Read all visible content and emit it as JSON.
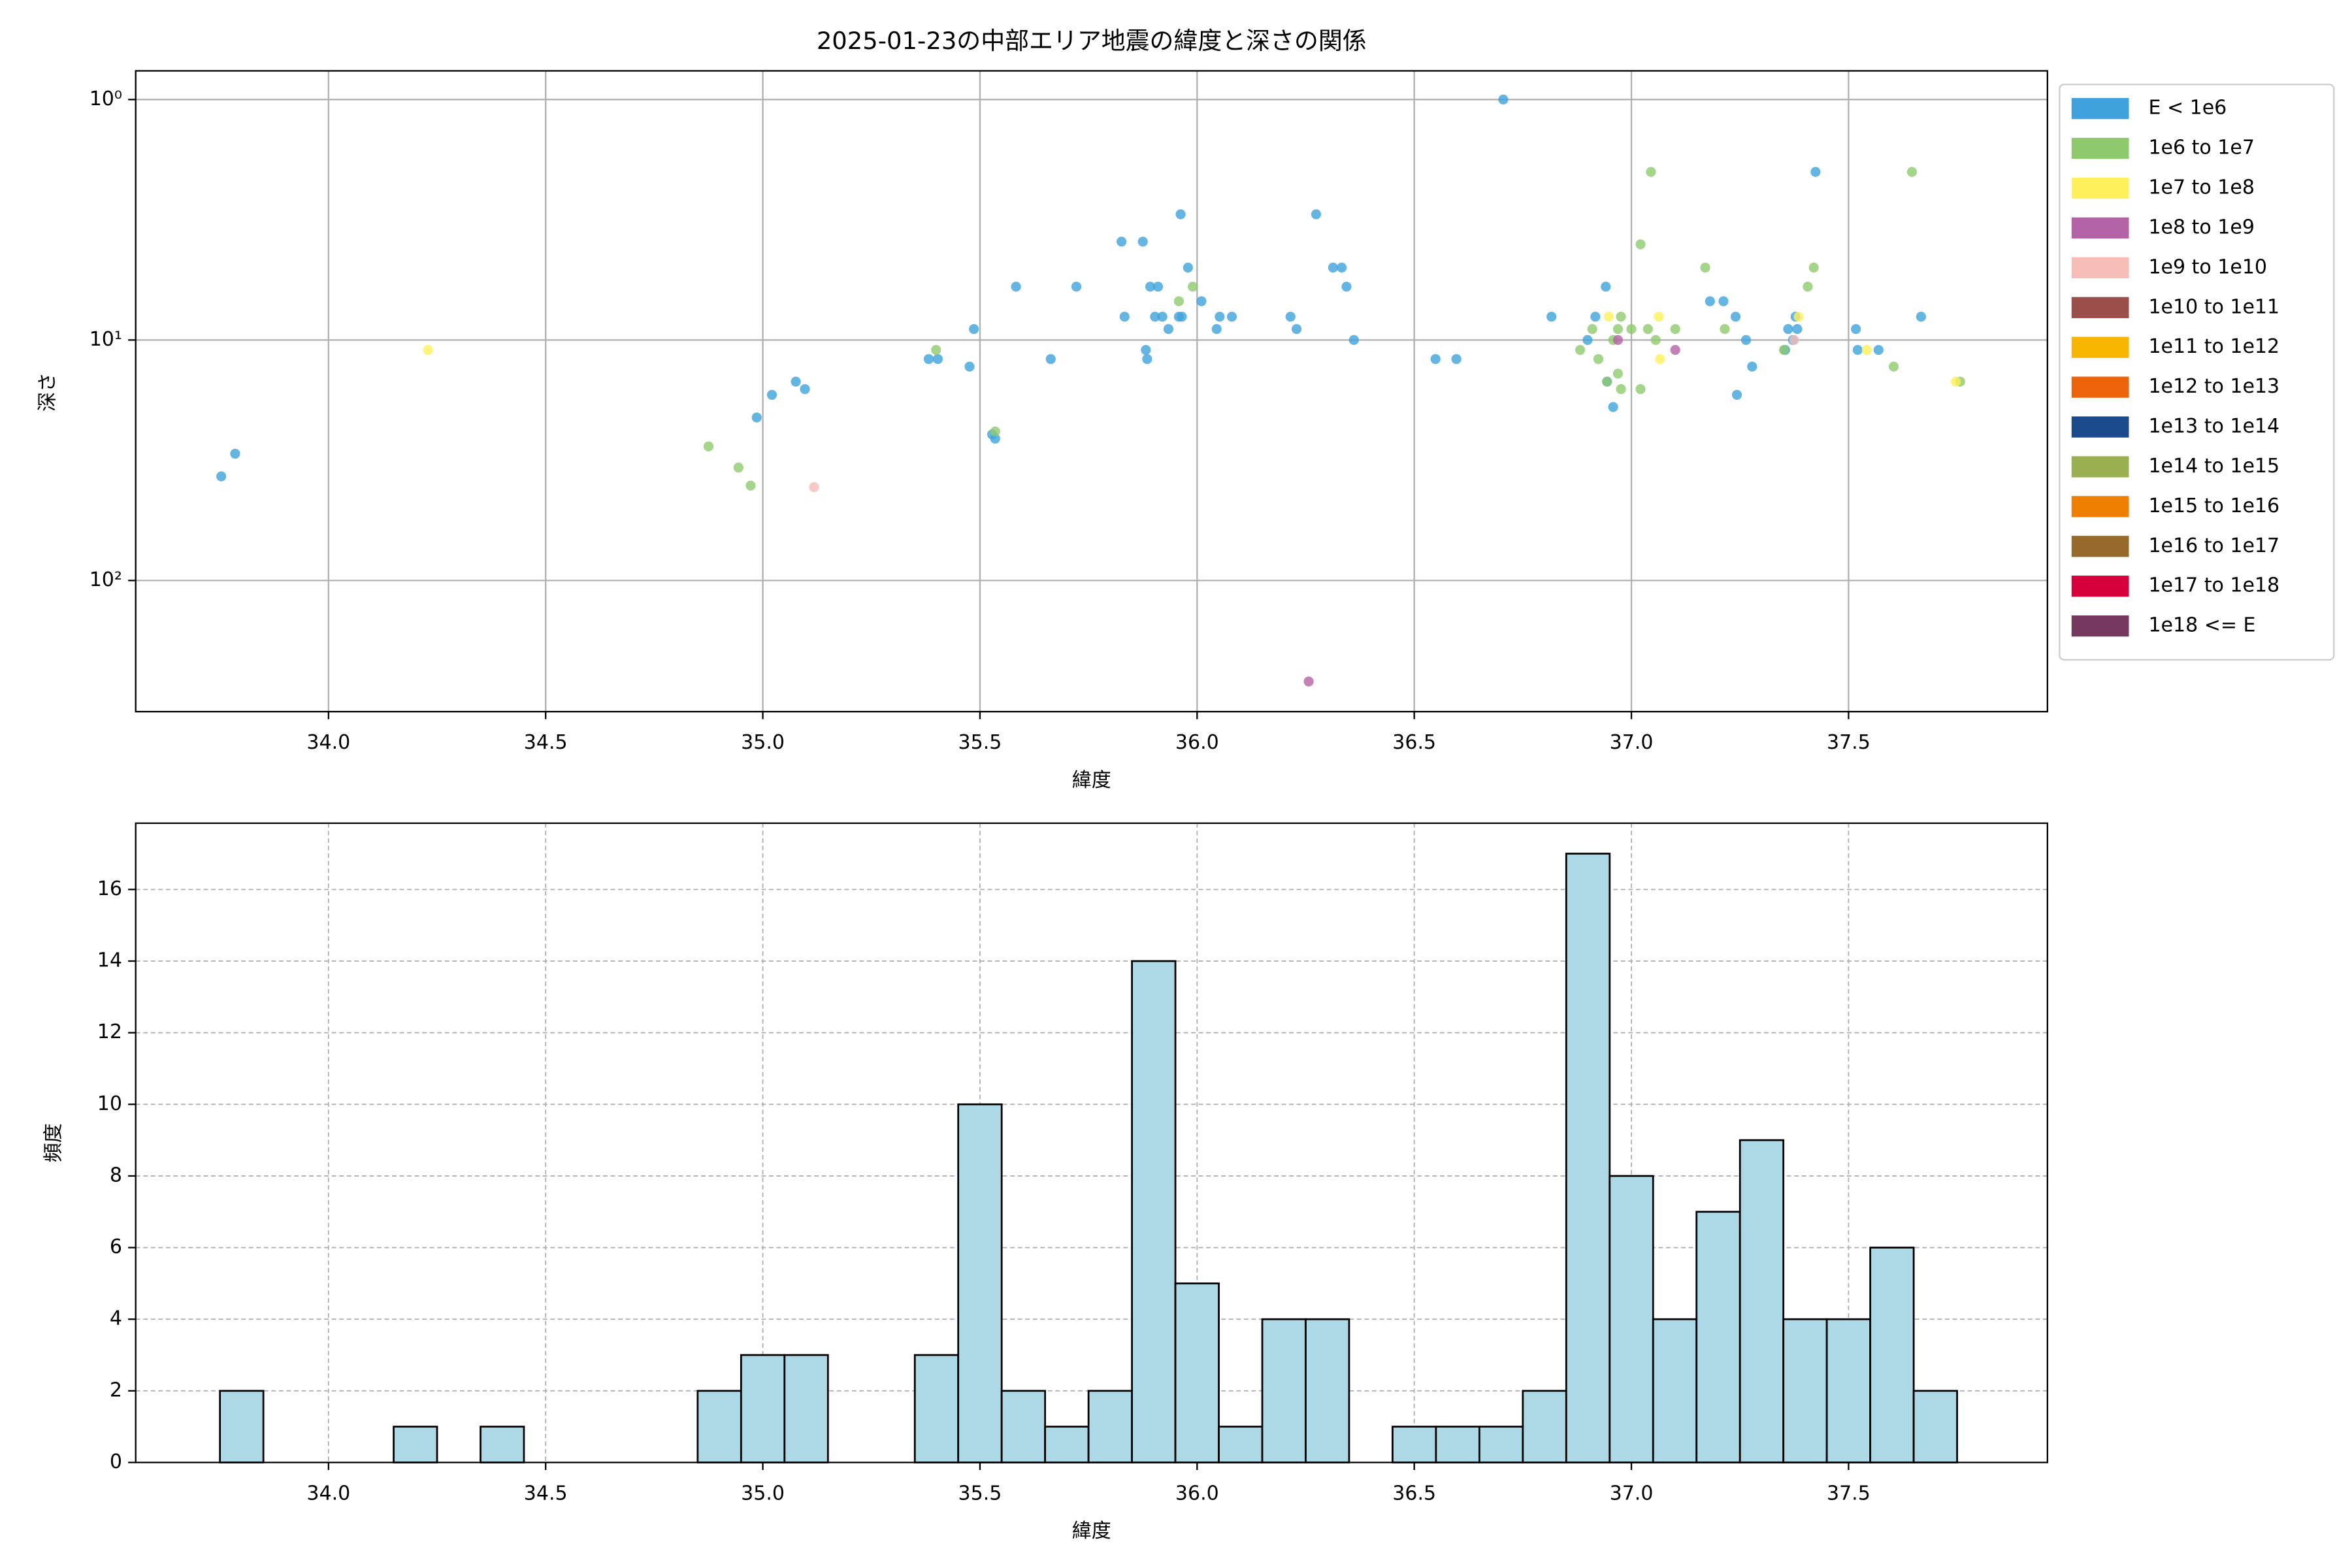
{
  "chart_data": [
    {
      "type": "scatter",
      "title": "2025-01-23の中部エリア地震の緯度と深さの関係",
      "xlabel": "緯度",
      "ylabel": "深さ",
      "yscale": "log",
      "y_inverted": true,
      "grid": true,
      "grid_style": "solid",
      "legend": "outside-right",
      "xlim": [
        33.556,
        37.958
      ],
      "xticks": [
        {
          "value": 34,
          "label": "34.0"
        },
        34.5,
        {
          "value": 35,
          "label": "35.0"
        },
        35.5,
        {
          "value": 36,
          "label": "36.0"
        },
        36.5,
        {
          "value": 37,
          "label": "37.0"
        },
        37.5
      ],
      "ylim": [
        0.76,
        351
      ],
      "yticks": [
        {
          "value": 1,
          "label": "10⁰"
        },
        {
          "value": 10,
          "label": "10¹"
        },
        {
          "value": 100,
          "label": "10²"
        }
      ],
      "series": [
        {
          "name": "E < 1e6",
          "color": "#3fa2dc",
          "x": [
            33.753,
            33.785,
            34.986,
            35.021,
            35.076,
            35.097,
            35.382,
            35.403,
            35.476,
            35.486,
            35.528,
            35.535,
            35.583,
            35.663,
            35.722,
            35.826,
            35.833,
            35.875,
            35.882,
            35.885,
            35.892,
            35.91,
            35.903,
            35.92,
            35.934,
            35.962,
            35.958,
            35.965,
            35.979,
            36.01,
            36.045,
            36.052,
            36.08,
            36.215,
            36.229,
            36.274,
            36.313,
            36.333,
            36.344,
            36.361,
            36.549,
            36.597,
            36.705,
            36.816,
            36.899,
            36.917,
            36.941,
            36.944,
            36.958,
            37.181,
            37.212,
            37.24,
            37.243,
            37.264,
            37.278,
            37.354,
            37.361,
            37.372,
            37.378,
            37.382,
            37.424,
            37.517,
            37.521,
            37.569,
            37.667
          ],
          "values": [
            36.9,
            29.7,
            21.0,
            16.9,
            14.9,
            16.0,
            12.0,
            12.0,
            12.9,
            9.0,
            24.7,
            25.7,
            6.0,
            12.0,
            6.0,
            3.9,
            8.0,
            3.9,
            11.0,
            12.0,
            6.0,
            6.0,
            8.0,
            8.0,
            9.0,
            3.0,
            8.0,
            8.0,
            5.0,
            6.9,
            9.0,
            8.0,
            8.0,
            8.0,
            9.0,
            3.0,
            5.0,
            5.0,
            6.0,
            10.0,
            12.0,
            12.0,
            1.0,
            8.0,
            10.0,
            8.0,
            6.0,
            14.9,
            19.0,
            6.9,
            6.9,
            8.0,
            16.9,
            10.0,
            12.9,
            11.0,
            9.0,
            10.0,
            8.0,
            9.0,
            2.0,
            9.0,
            11.0,
            11.0,
            8.0
          ]
        },
        {
          "name": "1e6 to 1e7",
          "color": "#8ec96e",
          "x": [
            34.875,
            34.944,
            34.972,
            35.399,
            35.535,
            35.958,
            35.99,
            36.882,
            36.91,
            36.924,
            36.944,
            36.958,
            36.969,
            36.976,
            36.969,
            36.976,
            37.0,
            37.021,
            37.021,
            37.038,
            37.045,
            37.056,
            37.101,
            37.17,
            37.215,
            37.351,
            37.406,
            37.42,
            37.604,
            37.646,
            37.757
          ],
          "values": [
            27.7,
            33.9,
            40.3,
            11.0,
            24.0,
            6.9,
            6.0,
            11.0,
            9.0,
            12.0,
            14.9,
            10.0,
            9.0,
            8.0,
            13.8,
            16.0,
            9.0,
            16.0,
            4.0,
            9.0,
            2.0,
            10.0,
            9.0,
            5.0,
            9.0,
            11.0,
            6.0,
            5.0,
            12.9,
            2.0,
            14.9
          ]
        },
        {
          "name": "1e7 to 1e8",
          "color": "#fef05a",
          "x": [
            34.229,
            36.948,
            37.063,
            37.066,
            37.385,
            37.542,
            37.747
          ],
          "values": [
            11.0,
            8.0,
            8.0,
            12.0,
            8.0,
            11.0,
            14.9
          ]
        },
        {
          "name": "1e8 to 1e9",
          "color": "#b462a6",
          "x": [
            36.969,
            37.101,
            36.257
          ],
          "values": [
            10.0,
            11.0,
            263
          ]
        },
        {
          "name": "1e9 to 1e10",
          "color": "#f5bdb6",
          "x": [
            35.118,
            37.375
          ],
          "values": [
            40.9,
            10.0
          ]
        },
        {
          "name": "1e10 to 1e11",
          "color": "#9a4f4a",
          "x": [],
          "values": []
        },
        {
          "name": "1e11 to 1e12",
          "color": "#f8b500",
          "x": [],
          "values": []
        },
        {
          "name": "1e12 to 1e13",
          "color": "#ec6309",
          "x": [],
          "values": []
        },
        {
          "name": "1e13 to 1e14",
          "color": "#1b4a8d",
          "x": [],
          "values": []
        },
        {
          "name": "1e14 to 1e15",
          "color": "#9aaf4f",
          "x": [],
          "values": []
        },
        {
          "name": "1e15 to 1e16",
          "color": "#ee7f00",
          "x": [],
          "values": []
        },
        {
          "name": "1e16 to 1e17",
          "color": "#966a2b",
          "x": [],
          "values": []
        },
        {
          "name": "1e17 to 1e18",
          "color": "#d6003a",
          "x": [],
          "values": []
        },
        {
          "name": "1e18 <= E",
          "color": "#75395f",
          "x": [],
          "values": []
        }
      ]
    },
    {
      "type": "histogram",
      "xlabel": "緯度",
      "ylabel": "頻度",
      "grid": true,
      "grid_style": "dashed",
      "color": "#add8e6",
      "edgecolor": "#000000",
      "xlim": [
        33.556,
        37.958
      ],
      "xticks": [
        {
          "value": 34,
          "label": "34.0"
        },
        34.5,
        {
          "value": 35,
          "label": "35.0"
        },
        35.5,
        {
          "value": 36,
          "label": "36.0"
        },
        36.5,
        {
          "value": 37,
          "label": "37.0"
        },
        37.5
      ],
      "ylim": [
        0,
        17.85
      ],
      "yticks": [
        0,
        2,
        4,
        6,
        8,
        10,
        12,
        14,
        16
      ],
      "bins": [
        33.75,
        33.85,
        33.95,
        34.05,
        34.15,
        34.25,
        34.35,
        34.45,
        34.55,
        34.65,
        34.75,
        34.85,
        34.95,
        35.05,
        35.15,
        35.25,
        35.35,
        35.45,
        35.55,
        35.65,
        35.75,
        35.85,
        35.95,
        36.05,
        36.15,
        36.25,
        36.35,
        36.45,
        36.55,
        36.65,
        36.75,
        36.85,
        36.95,
        37.05,
        37.15,
        37.25,
        37.35,
        37.45,
        37.55,
        37.65,
        37.75
      ],
      "values": [
        2,
        0,
        0,
        0,
        1,
        0,
        1,
        0,
        0,
        0,
        0,
        2,
        3,
        3,
        0,
        0,
        3,
        10,
        2,
        1,
        2,
        14,
        5,
        1,
        4,
        4,
        0,
        1,
        1,
        1,
        2,
        17,
        8,
        4,
        7,
        9,
        4,
        4,
        6,
        2
      ]
    }
  ]
}
